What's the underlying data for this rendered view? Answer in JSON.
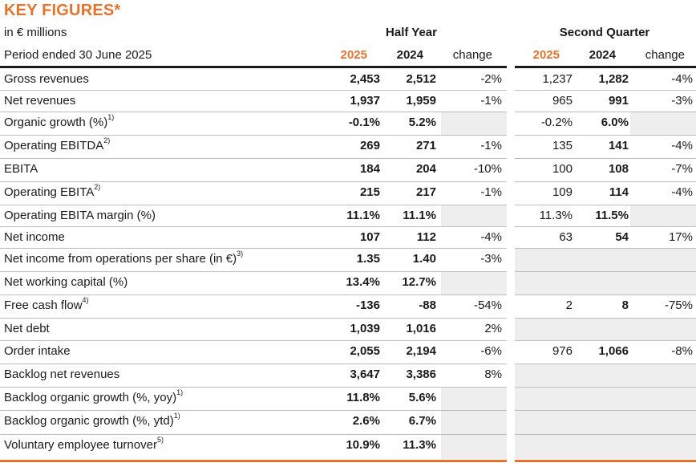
{
  "title": "KEY FIGURES*",
  "unit_label": "in € millions",
  "period_label": "Period ended 30 June 2025",
  "half_year": {
    "heading": "Half Year",
    "year_current": "2025",
    "year_prior": "2024",
    "change_label": "change"
  },
  "second_quarter": {
    "heading": "Second Quarter",
    "year_current": "2025",
    "year_prior": "2024",
    "change_label": "change"
  },
  "rows": [
    {
      "label": "Gross revenues",
      "sup": "",
      "hy25": "2,453",
      "hy24": "2,512",
      "hych": "-2%",
      "q25": "1,237",
      "q24": "1,282",
      "qch": "-4%"
    },
    {
      "label": "Net revenues",
      "sup": "",
      "hy25": "1,937",
      "hy24": "1,959",
      "hych": "-1%",
      "q25": "965",
      "q24": "991",
      "qch": "-3%"
    },
    {
      "label": "Organic growth (%)",
      "sup": "1)",
      "hy25": "-0.1%",
      "hy24": "5.2%",
      "hych": "",
      "q25": "-0.2%",
      "q24": "6.0%",
      "qch": ""
    },
    {
      "label": "Operating EBITDA",
      "sup": "2)",
      "hy25": "269",
      "hy24": "271",
      "hych": "-1%",
      "q25": "135",
      "q24": "141",
      "qch": "-4%"
    },
    {
      "label": "EBITA",
      "sup": "",
      "hy25": "184",
      "hy24": "204",
      "hych": "-10%",
      "q25": "100",
      "q24": "108",
      "qch": "-7%"
    },
    {
      "label": "Operating EBITA",
      "sup": "2)",
      "hy25": "215",
      "hy24": "217",
      "hych": "-1%",
      "q25": "109",
      "q24": "114",
      "qch": "-4%"
    },
    {
      "label": "Operating EBITA margin (%)",
      "sup": "",
      "hy25": "11.1%",
      "hy24": "11.1%",
      "hych": "",
      "q25": "11.3%",
      "q24": "11.5%",
      "qch": ""
    },
    {
      "label": "Net income",
      "sup": "",
      "hy25": "107",
      "hy24": "112",
      "hych": "-4%",
      "q25": "63",
      "q24": "54",
      "qch": "17%"
    },
    {
      "label": "Net income from operations per share (in €)",
      "sup": "3)",
      "hy25": "1.35",
      "hy24": "1.40",
      "hych": "-3%",
      "q25": "",
      "q24": "",
      "qch": ""
    },
    {
      "label": "Net working capital (%)",
      "sup": "",
      "hy25": "13.4%",
      "hy24": "12.7%",
      "hych": "",
      "q25": "",
      "q24": "",
      "qch": ""
    },
    {
      "label": "Free cash flow",
      "sup": "4)",
      "hy25": "-136",
      "hy24": "-88",
      "hych": "-54%",
      "q25": "2",
      "q24": "8",
      "qch": "-75%"
    },
    {
      "label": "Net debt",
      "sup": "",
      "hy25": "1,039",
      "hy24": "1,016",
      "hych": "2%",
      "q25": "",
      "q24": "",
      "qch": ""
    },
    {
      "label": "Order intake",
      "sup": "",
      "hy25": "2,055",
      "hy24": "2,194",
      "hych": "-6%",
      "q25": "976",
      "q24": "1,066",
      "qch": "-8%"
    },
    {
      "label": "Backlog net revenues",
      "sup": "",
      "hy25": "3,647",
      "hy24": "3,386",
      "hych": "8%",
      "q25": "",
      "q24": "",
      "qch": ""
    },
    {
      "label": "Backlog organic growth (%, yoy)",
      "sup": "1)",
      "hy25": "11.8%",
      "hy24": "5.6%",
      "hych": "",
      "q25": "",
      "q24": "",
      "qch": ""
    },
    {
      "label": "Backlog organic growth (%, ytd)",
      "sup": "1)",
      "hy25": "2.6%",
      "hy24": "6.7%",
      "hych": "",
      "q25": "",
      "q24": "",
      "qch": ""
    },
    {
      "label": "Voluntary employee turnover",
      "sup": "5)",
      "hy25": "10.9%",
      "hy24": "11.3%",
      "hych": "",
      "q25": "",
      "q24": "",
      "qch": ""
    }
  ]
}
